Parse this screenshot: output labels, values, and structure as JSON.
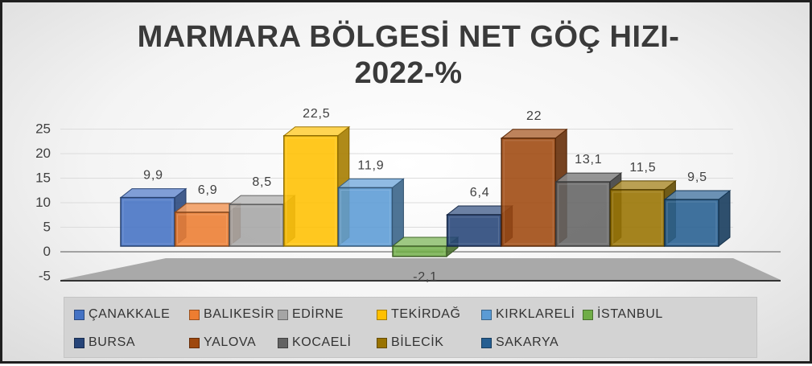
{
  "chart_data": {
    "type": "bar",
    "title_line1": "MARMARA BÖLGESİ NET GÖÇ HIZI-",
    "title_line2": "2022-%",
    "categories": [
      "ÇANAKKALE",
      "BALIKESİR",
      "EDİRNE",
      "TEKİRDAĞ",
      "KIRKLARELİ",
      "İSTANBUL",
      "BURSA",
      "YALOVA",
      "KOCAELİ",
      "BİLECİK",
      "SAKARYA"
    ],
    "values": [
      9.9,
      6.9,
      8.5,
      22.5,
      11.9,
      -2.1,
      6.4,
      22,
      13.1,
      11.5,
      9.5
    ],
    "value_labels": [
      "9,9",
      "6,9",
      "8,5",
      "22,5",
      "11,9",
      "-2,1",
      "6,4",
      "22",
      "13,1",
      "11,5",
      "9,5"
    ],
    "colors": [
      "#4472c4",
      "#ed7d31",
      "#a5a5a5",
      "#ffc000",
      "#5b9bd5",
      "#70ad47",
      "#264478",
      "#9e480e",
      "#636363",
      "#997300",
      "#255e91"
    ],
    "ylim": [
      -5,
      25
    ],
    "yticks": [
      "25",
      "20",
      "15",
      "10",
      "5",
      "0",
      "-5"
    ],
    "ytick_values": [
      25,
      20,
      15,
      10,
      5,
      0,
      -5
    ],
    "grid": true,
    "legend_position": "bottom"
  }
}
